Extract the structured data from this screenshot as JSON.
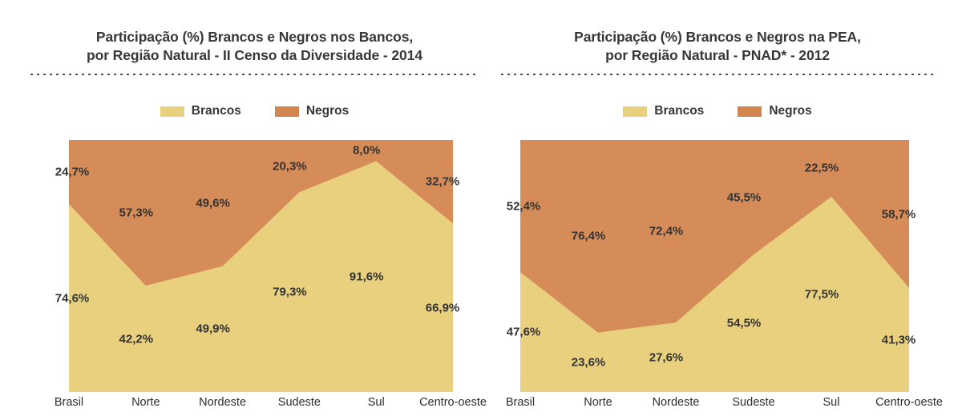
{
  "page": {
    "background": "#FFFFFF"
  },
  "colors": {
    "brancos_fill": "#E9D07F",
    "negros_fill": "#D68C58",
    "legend_brancos_swatch": "#E9D07F",
    "legend_negros_swatch": "#D2854C",
    "title_text": "#373737",
    "label_text": "#333333",
    "dotted_rule": "#4C4C4C"
  },
  "chart_data": [
    {
      "type": "area",
      "stacking": "percent",
      "title_lines": [
        "Participação (%) Brancos e Negros nos Bancos,",
        "por Região Natural - II Censo da Diversidade - 2014"
      ],
      "categories": [
        "Brasil",
        "Norte",
        "Nordeste",
        "Sudeste",
        "Sul",
        "Centro-oeste"
      ],
      "series": [
        {
          "name": "Brancos",
          "color": "#E9D07F",
          "values": [
            74.6,
            42.2,
            49.9,
            79.3,
            91.6,
            66.9
          ],
          "labels": [
            "74,6%",
            "42,2%",
            "49,9%",
            "79,3%",
            "91,6%",
            "66,9%"
          ]
        },
        {
          "name": "Negros",
          "color": "#D68C58",
          "values": [
            24.7,
            57.3,
            49.6,
            20.3,
            8.0,
            32.7
          ],
          "labels": [
            "24,7%",
            "57,3%",
            "49,6%",
            "20,3%",
            "8,0%",
            "32,7%"
          ]
        }
      ],
      "legend_position": "top",
      "y_range": [
        0,
        100
      ],
      "grid": false,
      "xlabel": "",
      "ylabel": ""
    },
    {
      "type": "area",
      "stacking": "percent",
      "title_lines": [
        "Participação (%) Brancos e Negros na PEA,",
        "por Região Natural - PNAD* - 2012"
      ],
      "categories": [
        "Brasil",
        "Norte",
        "Nordeste",
        "Sudeste",
        "Sul",
        "Centro-oeste"
      ],
      "series": [
        {
          "name": "Brancos",
          "color": "#E9D07F",
          "values": [
            47.6,
            23.6,
            27.6,
            54.5,
            77.5,
            41.3
          ],
          "labels": [
            "47,6%",
            "23,6%",
            "27,6%",
            "54,5%",
            "77,5%",
            "41,3%"
          ]
        },
        {
          "name": "Negros",
          "color": "#D68C58",
          "values": [
            52.4,
            76.4,
            72.4,
            45.5,
            22.5,
            58.7
          ],
          "labels": [
            "52,4%",
            "76,4%",
            "72,4%",
            "45,5%",
            "22,5%",
            "58,7%"
          ]
        }
      ],
      "legend_position": "top",
      "y_range": [
        0,
        100
      ],
      "grid": false,
      "xlabel": "",
      "ylabel": ""
    }
  ]
}
